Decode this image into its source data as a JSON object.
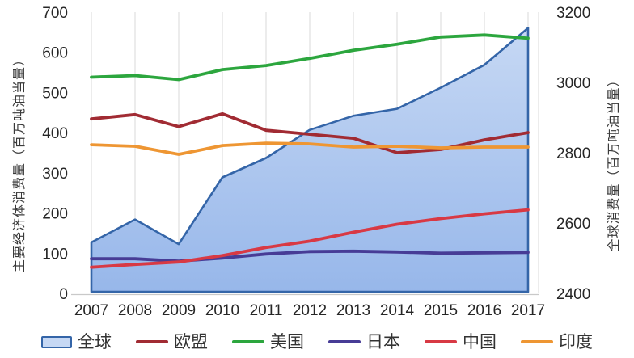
{
  "chart_data": {
    "type": "area+line combo, dual y-axis",
    "x": [
      2007,
      2008,
      2009,
      2010,
      2011,
      2012,
      2013,
      2014,
      2015,
      2016,
      2017
    ],
    "left_axis": {
      "label": "主要经济体消费量（百万吨油当量）",
      "min": 0,
      "max": 700,
      "ticks": [
        0,
        100,
        200,
        300,
        400,
        500,
        600,
        700
      ]
    },
    "right_axis": {
      "label": "全球消费量（百万吨油当量）",
      "min": 2400,
      "max": 3200,
      "ticks": [
        2400,
        2600,
        2800,
        3000,
        3200
      ]
    },
    "grid": "vertical gridlines at each year, no horizontal gridlines",
    "legend_position": "bottom",
    "series": [
      {
        "id": "global",
        "name": "全球",
        "type": "area",
        "axis": "right",
        "color": "#3465A8",
        "fill_top": "#C6D8F4",
        "fill_bottom": "#97B7EA",
        "values": [
          2545,
          2610,
          2540,
          2730,
          2785,
          2865,
          2905,
          2925,
          2985,
          3050,
          3155
        ]
      },
      {
        "id": "eu",
        "name": "欧盟",
        "type": "line",
        "axis": "left",
        "color": "#A12B33",
        "values": [
          434,
          445,
          415,
          447,
          406,
          396,
          386,
          350,
          358,
          382,
          400
        ]
      },
      {
        "id": "us",
        "name": "美国",
        "type": "line",
        "axis": "left",
        "color": "#2CA63E",
        "values": [
          538,
          542,
          532,
          557,
          567,
          585,
          605,
          620,
          638,
          643,
          635
        ]
      },
      {
        "id": "japan",
        "name": "日本",
        "type": "line",
        "axis": "left",
        "color": "#473C96",
        "values": [
          86,
          86,
          80,
          88,
          98,
          104,
          105,
          103,
          100,
          101,
          102
        ]
      },
      {
        "id": "china",
        "name": "中国",
        "type": "line",
        "axis": "left",
        "color": "#D83944",
        "values": [
          65,
          72,
          78,
          94,
          114,
          130,
          152,
          172,
          186,
          198,
          208
        ]
      },
      {
        "id": "india",
        "name": "印度",
        "type": "line",
        "axis": "left",
        "color": "#EE9633",
        "values": [
          370,
          366,
          346,
          368,
          374,
          372,
          364,
          366,
          362,
          364,
          364
        ]
      }
    ]
  }
}
